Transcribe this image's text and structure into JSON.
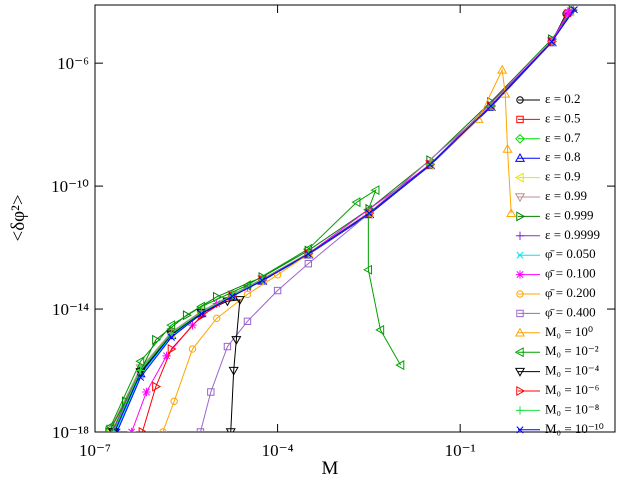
{
  "chart_data": {
    "type": "line",
    "log_x": true,
    "log_y": true,
    "x_label": "M",
    "y_label": "<δφ²>",
    "xlim": [
      1e-07,
      35
    ],
    "ylim": [
      1e-18,
      7.8e-05
    ],
    "xticks": [
      {
        "value": 1e-07,
        "label": "10⁻⁷"
      },
      {
        "value": 0.0001,
        "label": "10⁻⁴"
      },
      {
        "value": 0.1,
        "label": "10⁻¹"
      }
    ],
    "yticks": [
      {
        "value": 1e-18,
        "label": "10⁻¹⁸"
      },
      {
        "value": 1e-14,
        "label": "10⁻¹⁴"
      },
      {
        "value": 1e-10,
        "label": "10⁻¹⁰"
      },
      {
        "value": 1e-06,
        "label": "10⁻⁶"
      }
    ],
    "series": [
      {
        "name": "ε = 0.2",
        "color": "#000000",
        "marker": "circle",
        "x": [
          1.9e-07,
          5.6e-07,
          1.8e-06,
          5.6e-06,
          1.8e-05,
          5.6e-05,
          0.00032,
          0.0032,
          0.032,
          0.32,
          3.2,
          5.5
        ],
        "values": [
          1e-18,
          1e-16,
          1.6e-15,
          7.9e-15,
          2.8e-14,
          8.9e-14,
          6.3e-13,
          1.3e-11,
          5e-10,
          4e-08,
          5e-06,
          4e-05
        ]
      },
      {
        "name": "ε = 0.5",
        "color": "#ff0000",
        "marker": "square",
        "x": [
          2e-07,
          5.6e-07,
          1.8e-06,
          5.6e-06,
          1.8e-05,
          5.6e-05,
          0.00032,
          0.0032,
          0.032,
          0.32,
          3.2,
          5.8
        ],
        "values": [
          1e-18,
          9e-17,
          1.5e-15,
          7.5e-15,
          2.7e-14,
          8.5e-14,
          6e-13,
          1.2e-11,
          4.8e-10,
          3.8e-08,
          4.8e-06,
          4.2e-05
        ]
      },
      {
        "name": "ε = 0.7",
        "color": "#00dd00",
        "marker": "diamond",
        "x": [
          1.8e-07,
          5.6e-07,
          1.8e-06,
          5.6e-06,
          1.8e-05,
          5.6e-05,
          0.00032,
          0.0032,
          0.032,
          0.32,
          3.2,
          6
        ],
        "values": [
          1.2e-18,
          1.1e-16,
          1.7e-15,
          8.2e-15,
          2.9e-14,
          9.2e-14,
          6.5e-13,
          1.35e-11,
          5.2e-10,
          4.2e-08,
          5.2e-06,
          4.5e-05
        ]
      },
      {
        "name": "ε = 0.8",
        "color": "#0000ff",
        "marker": "triangle-up",
        "x": [
          2.1e-07,
          5.6e-07,
          1.8e-06,
          5.6e-06,
          1.8e-05,
          5.6e-05,
          0.00032,
          0.0032,
          0.032,
          0.32,
          3.2,
          6.2
        ],
        "values": [
          1e-18,
          8e-17,
          1.4e-15,
          7.2e-15,
          2.6e-14,
          8.2e-14,
          5.9e-13,
          1.2e-11,
          4.7e-10,
          3.7e-08,
          4.7e-06,
          4.6e-05
        ]
      },
      {
        "name": "ε = 0.9",
        "color": "#e6e600",
        "marker": "triangle-left",
        "x": [
          1.9e-07,
          5.6e-07,
          1.8e-06,
          5.6e-06,
          1.8e-05,
          5.6e-05,
          0.00032,
          0.0032,
          0.032,
          0.32,
          3.2,
          6.5
        ],
        "values": [
          1.1e-18,
          1e-16,
          1.6e-15,
          8e-15,
          2.8e-14,
          9e-14,
          6.4e-13,
          1.3e-11,
          5e-10,
          4e-08,
          5e-06,
          4.8e-05
        ]
      },
      {
        "name": "ε = 0.99",
        "color": "#bc8f8f",
        "marker": "triangle-down",
        "x": [
          1.8e-07,
          5.6e-07,
          1.8e-06,
          5.6e-06,
          1.8e-05,
          5.6e-05,
          0.00032,
          0.0032,
          0.032,
          0.32,
          3.2,
          6.8
        ],
        "values": [
          1.3e-18,
          1.2e-16,
          1.8e-15,
          8.5e-15,
          3e-14,
          9.5e-14,
          6.6e-13,
          1.4e-11,
          5.3e-10,
          4.3e-08,
          5.3e-06,
          5e-05
        ]
      },
      {
        "name": "ε = 0.999",
        "color": "#008000",
        "marker": "triangle-right",
        "x": [
          1.7e-07,
          3.2e-07,
          1e-06,
          3.2e-06,
          1e-05,
          5.6e-05,
          0.00032,
          0.0032,
          0.032,
          0.32,
          3.2,
          7
        ],
        "values": [
          1e-18,
          1e-17,
          1e-15,
          6.3e-15,
          2.5e-14,
          1.1e-13,
          8e-13,
          1.8e-11,
          7e-10,
          5.5e-08,
          6e-06,
          5.2e-05
        ]
      },
      {
        "name": "ε = 0.9999",
        "color": "#8a2be2",
        "marker": "plus",
        "x": [
          1.9e-07,
          5.6e-07,
          1.8e-06,
          5.6e-06,
          1.8e-05,
          5.6e-05,
          0.00032,
          0.0032,
          0.032,
          0.32,
          3.2,
          7.2
        ],
        "values": [
          1e-18,
          1e-16,
          1.6e-15,
          7.9e-15,
          2.8e-14,
          8.9e-14,
          6.3e-13,
          1.3e-11,
          5e-10,
          4e-08,
          5e-06,
          5.4e-05
        ]
      },
      {
        "name": "φ̄ = 0.050",
        "color": "#00e5ee",
        "marker": "cross",
        "x": [
          2.2e-07,
          5.6e-07,
          1.8e-06,
          5.6e-06,
          1.8e-05,
          5.6e-05,
          0.00032,
          0.0032,
          0.032,
          0.32,
          3.2,
          6
        ],
        "values": [
          1e-18,
          7e-17,
          1.3e-15,
          7e-15,
          2.6e-14,
          8.5e-14,
          6.2e-13,
          1.3e-11,
          5e-10,
          4e-08,
          5e-06,
          4.5e-05
        ]
      },
      {
        "name": "φ̄ = 0.100",
        "color": "#ff00ff",
        "marker": "star",
        "x": [
          4e-07,
          7e-07,
          1.5e-06,
          4e-06,
          1e-05,
          3.2e-05,
          0.00032,
          0.032,
          3.2,
          6
        ],
        "values": [
          1e-18,
          2e-17,
          3e-16,
          3e-15,
          1.5e-14,
          5e-14,
          6.3e-13,
          5e-10,
          5e-06,
          4.5e-05
        ]
      },
      {
        "name": "φ̄ = 0.200",
        "color": "#ffa500",
        "marker": "circle",
        "x": [
          1.3e-06,
          2e-06,
          4e-06,
          1e-05,
          3.2e-05,
          0.0001,
          0.0032,
          0.32,
          3.2
        ],
        "values": [
          1e-18,
          1e-17,
          5e-16,
          5e-15,
          3e-14,
          1.3e-13,
          1.3e-11,
          4e-08,
          5e-06
        ]
      },
      {
        "name": "φ̄ = 0.400",
        "color": "#9966cc",
        "marker": "square",
        "x": [
          5.4e-06,
          8e-06,
          1.5e-05,
          3.2e-05,
          0.0001,
          0.00032,
          0.0032,
          0.32,
          3.2
        ],
        "values": [
          1e-18,
          2e-17,
          6e-16,
          4e-15,
          4e-14,
          3e-13,
          1.3e-11,
          4e-08,
          5e-06
        ]
      },
      {
        "name": "M₀ = 10⁰",
        "color": "#ffa500",
        "marker": "triangle-up",
        "x": [
          0.00032,
          0.0032,
          0.032,
          0.2,
          0.49,
          0.55,
          0.6,
          0.69
        ],
        "values": [
          6.3e-13,
          1.3e-11,
          5e-10,
          1.5e-08,
          6e-07,
          1e-07,
          1.6e-09,
          1.3e-11
        ]
      },
      {
        "name": "M₀ = 10⁻²",
        "color": "#00a000",
        "marker": "triangle-left",
        "x": [
          1.8e-07,
          5.6e-07,
          1.8e-06,
          5.6e-06,
          3.2e-05,
          0.00032,
          0.002,
          0.0041,
          0.0031,
          0.0031,
          0.0049,
          0.0105
        ],
        "values": [
          1.5e-18,
          2e-16,
          3e-15,
          1.2e-14,
          6e-14,
          9e-13,
          3e-11,
          7.4e-11,
          1.7e-11,
          1.9e-13,
          2.1e-15,
          1.5e-16
        ]
      },
      {
        "name": "M₀ = 10⁻⁴",
        "color": "#000000",
        "marker": "triangle-down",
        "x": [
          2e-07,
          5.6e-07,
          1.8e-06,
          5.6e-06,
          1.5e-05,
          2.4e-05,
          2.1e-05,
          1.9e-05,
          1.7e-05
        ],
        "values": [
          1e-18,
          9e-17,
          1.5e-15,
          7.5e-15,
          1.8e-14,
          2e-14,
          1e-15,
          1e-16,
          1e-18
        ]
      },
      {
        "name": "M₀ = 10⁻⁶",
        "color": "#ff0000",
        "marker": "triangle-right",
        "x": [
          6e-07,
          1e-06,
          1.8e-06,
          5.6e-06,
          1.8e-05,
          5.6e-05,
          0.00032,
          0.0032,
          0.032,
          0.32,
          3.2
        ],
        "values": [
          1e-18,
          3e-17,
          5e-16,
          6e-15,
          2.6e-14,
          8.7e-14,
          6.3e-13,
          1.3e-11,
          5e-10,
          4e-08,
          5e-06
        ]
      },
      {
        "name": "M₀ = 10⁻⁸",
        "color": "#22dd44",
        "marker": "plus",
        "x": [
          2e-07,
          5.6e-07,
          1.8e-06,
          5.6e-06,
          1.8e-05,
          5.6e-05,
          0.00032,
          0.0032,
          0.032,
          0.32,
          3.2
        ],
        "values": [
          1e-18,
          1e-16,
          1.6e-15,
          7.9e-15,
          2.8e-14,
          8.9e-14,
          6.3e-13,
          1.3e-11,
          5e-10,
          4e-08,
          5e-06
        ]
      },
      {
        "name": "M₀ = 10⁻¹⁰",
        "color": "#0000ff",
        "marker": "cross",
        "x": [
          2.3e-07,
          5.6e-07,
          1.8e-06,
          5.6e-06,
          1.8e-05,
          5.6e-05,
          0.00032,
          0.0032,
          0.032,
          0.32,
          3.2,
          7.5
        ],
        "values": [
          1e-18,
          6e-17,
          1.2e-15,
          7e-15,
          2.6e-14,
          8.5e-14,
          6.2e-13,
          1.3e-11,
          5e-10,
          4e-08,
          5e-06,
          5.5e-05
        ]
      }
    ]
  }
}
